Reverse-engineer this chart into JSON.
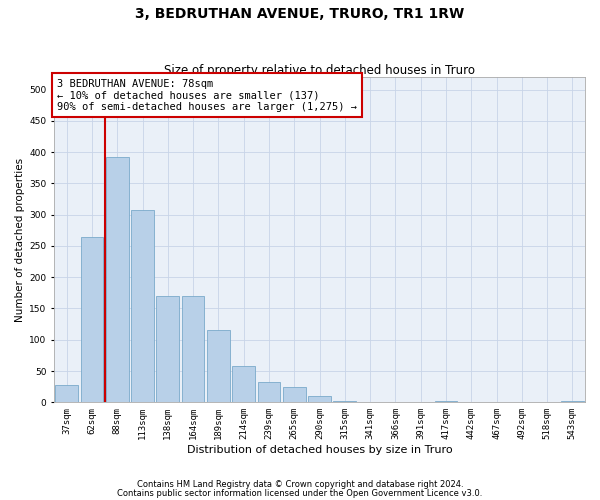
{
  "title": "3, BEDRUTHAN AVENUE, TRURO, TR1 1RW",
  "subtitle": "Size of property relative to detached houses in Truro",
  "xlabel": "Distribution of detached houses by size in Truro",
  "ylabel": "Number of detached properties",
  "footnote1": "Contains HM Land Registry data © Crown copyright and database right 2024.",
  "footnote2": "Contains public sector information licensed under the Open Government Licence v3.0.",
  "categories": [
    "37sqm",
    "62sqm",
    "88sqm",
    "113sqm",
    "138sqm",
    "164sqm",
    "189sqm",
    "214sqm",
    "239sqm",
    "265sqm",
    "290sqm",
    "315sqm",
    "341sqm",
    "366sqm",
    "391sqm",
    "417sqm",
    "442sqm",
    "467sqm",
    "492sqm",
    "518sqm",
    "543sqm"
  ],
  "values": [
    27,
    265,
    392,
    308,
    170,
    170,
    115,
    58,
    33,
    25,
    10,
    2,
    0,
    0,
    0,
    2,
    0,
    0,
    0,
    0,
    2
  ],
  "bar_color": "#b8d0e8",
  "bar_edge_color": "#7aaacb",
  "grid_color": "#c8d4e8",
  "background_color": "#eaf0f8",
  "vline_color": "#cc0000",
  "ylim": [
    0,
    520
  ],
  "yticks": [
    0,
    50,
    100,
    150,
    200,
    250,
    300,
    350,
    400,
    450,
    500
  ],
  "annotation_text": "3 BEDRUTHAN AVENUE: 78sqm\n← 10% of detached houses are smaller (137)\n90% of semi-detached houses are larger (1,275) →",
  "annotation_box_color": "#ffffff",
  "annotation_box_edge_color": "#cc0000",
  "annotation_fontsize": 7.5,
  "title_fontsize": 10,
  "subtitle_fontsize": 8.5,
  "xlabel_fontsize": 8,
  "ylabel_fontsize": 7.5,
  "tick_fontsize": 6.5,
  "footnote_fontsize": 6.0
}
